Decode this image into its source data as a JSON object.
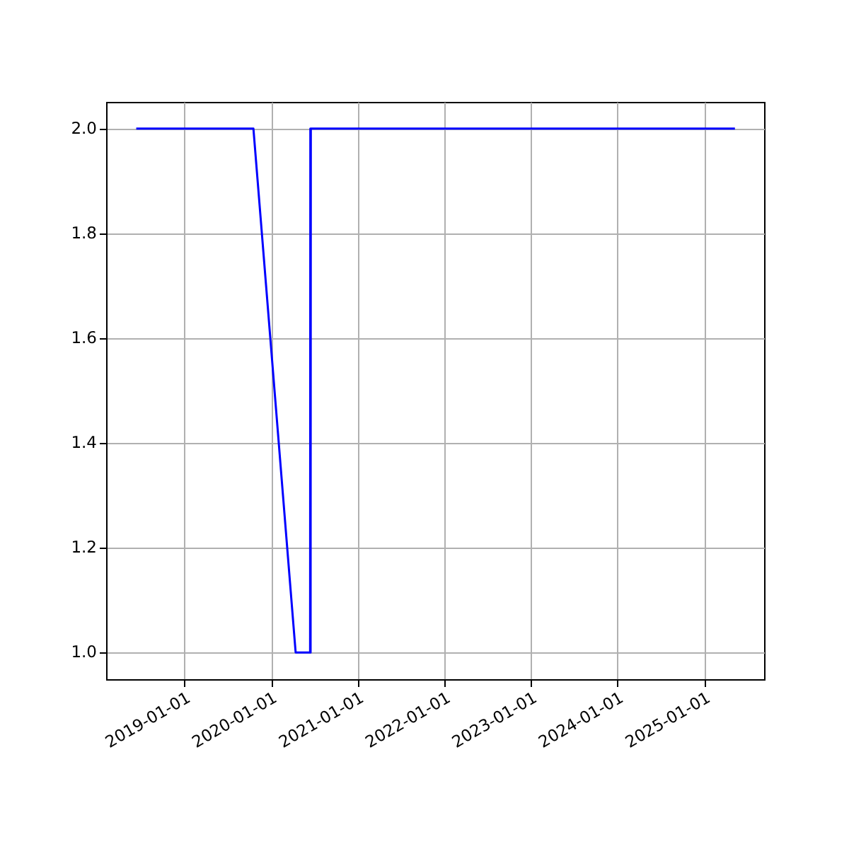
{
  "chart_data": {
    "type": "line",
    "x": [
      "2018-06-12",
      "2019-10-19",
      "2020-04-14",
      "2020-06-14",
      "2020-06-15",
      "2020-06-16",
      "2020-06-17",
      "2025-05-10"
    ],
    "series": [
      {
        "color": "#0000ff",
        "values": [
          2.0,
          2.0,
          1.0,
          1.0,
          2.0,
          1.0,
          2.0,
          2.0
        ]
      }
    ],
    "xlim": [
      "2018-02-05",
      "2025-09-10"
    ],
    "xticks": [
      "2019-01-01",
      "2020-01-01",
      "2021-01-01",
      "2022-01-01",
      "2023-01-01",
      "2024-01-01",
      "2025-01-01"
    ],
    "ylim": [
      0.949,
      2.051
    ],
    "yticks": [
      {
        "value": 1.0,
        "label": "1.0"
      },
      {
        "value": 1.2,
        "label": "1.2"
      },
      {
        "value": 1.4,
        "label": "1.4"
      },
      {
        "value": 1.6,
        "label": "1.6"
      },
      {
        "value": 1.8,
        "label": "1.8"
      },
      {
        "value": 2.0,
        "label": "2.0"
      }
    ],
    "grid": true
  }
}
